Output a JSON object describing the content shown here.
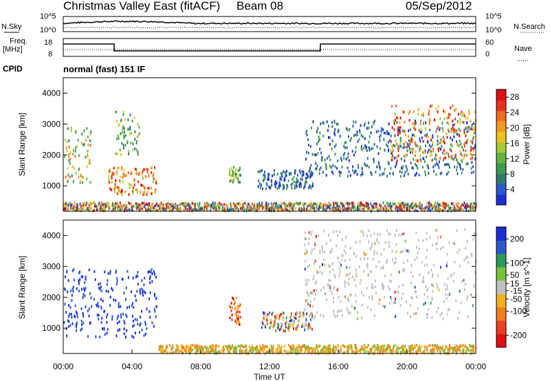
{
  "header": {
    "title": "Christmas Valley East (fitACF)",
    "beam": "Beam 08",
    "date": "05/Sep/2012"
  },
  "strips": {
    "nsky_label": "N.Sky",
    "nsearch_label": "N.Search",
    "nsky_ticks": [
      "10^5",
      "10^0"
    ],
    "nsearch_ticks": [
      "10^5",
      "10^0"
    ],
    "freq_label": "Freq.",
    "freq_unit": "[MHz]",
    "freq_ticks": [
      "18",
      "8"
    ],
    "nave_label": "Nave",
    "nave_ticks": [
      "60",
      "0"
    ],
    "cpid_label": "CPID",
    "cpid_text": "normal (fast) 151 IF"
  },
  "colors": {
    "power_scale": [
      "#1a2fd6",
      "#2a58c8",
      "#2f7a6e",
      "#3d9a52",
      "#62b33e",
      "#a6c936",
      "#f0c020",
      "#f09a20",
      "#f06a1e",
      "#e83020",
      "#e01010"
    ],
    "velocity_scale": [
      "#1a2fd6",
      "#2a58c8",
      "#2a9a5a",
      "#7ac040",
      "#c0c0c0",
      "#f0b020",
      "#f08020",
      "#e84020",
      "#e01010"
    ],
    "ground_scatter": "#bdbdbd"
  },
  "chart_data": [
    {
      "type": "heatmap",
      "name": "power",
      "ylabel": "Slant Range [km]",
      "xlabel": "Time UT",
      "x_ticks": [
        "00:00",
        "04:00",
        "08:00",
        "12:00",
        "16:00",
        "20:00",
        "00:00"
      ],
      "x_range_hours": [
        0,
        24
      ],
      "ylim": [
        180,
        4500
      ],
      "y_ticks": [
        1000,
        2000,
        3000,
        4000
      ],
      "colorbar": {
        "label": "Power [dB]",
        "ticks": [
          4,
          8,
          12,
          16,
          20,
          24,
          28
        ],
        "range": [
          0,
          30
        ]
      },
      "features": [
        {
          "t": [
            0.0,
            1.6
          ],
          "range": [
            1100,
            2900
          ],
          "level": "mid-high"
        },
        {
          "t": [
            2.6,
            5.4
          ],
          "range": [
            700,
            1600
          ],
          "level": "high"
        },
        {
          "t": [
            3.0,
            4.4
          ],
          "range": [
            2000,
            3400
          ],
          "level": "mid"
        },
        {
          "t": [
            9.6,
            10.3
          ],
          "range": [
            1100,
            1600
          ],
          "level": "mid"
        },
        {
          "t": [
            11.3,
            14.5
          ],
          "range": [
            900,
            1500
          ],
          "level": "low"
        },
        {
          "t": [
            14.0,
            24.0
          ],
          "range": [
            1300,
            3100
          ],
          "level": "low"
        },
        {
          "t": [
            19.0,
            24.0
          ],
          "range": [
            1800,
            3600
          ],
          "level": "high"
        },
        {
          "t": [
            0.0,
            24.0
          ],
          "range": [
            180,
            450
          ],
          "level": "mixed"
        }
      ]
    },
    {
      "type": "heatmap",
      "name": "velocity",
      "ylabel": "Slant Range [km]",
      "xlabel": "Time UT",
      "x_ticks": [
        "00:00",
        "04:00",
        "08:00",
        "12:00",
        "16:00",
        "20:00",
        "00:00"
      ],
      "x_range_hours": [
        0,
        24
      ],
      "ylim": [
        180,
        4500
      ],
      "y_ticks": [
        1000,
        2000,
        3000,
        4000
      ],
      "colorbar": {
        "label": "Velocity [m s^-1]",
        "ticks": [
          200,
          100,
          50,
          15,
          -15,
          -50,
          -100,
          -200
        ],
        "range": [
          -250,
          250
        ]
      },
      "features": [
        {
          "t": [
            0.0,
            5.4
          ],
          "range": [
            700,
            2900
          ],
          "level": "positive"
        },
        {
          "t": [
            9.6,
            10.3
          ],
          "range": [
            1100,
            2000
          ],
          "level": "negative"
        },
        {
          "t": [
            11.5,
            14.5
          ],
          "range": [
            900,
            1500
          ],
          "level": "mixed"
        },
        {
          "t": [
            14.0,
            24.0
          ],
          "range": [
            1300,
            4200
          ],
          "level": "ground"
        },
        {
          "t": [
            5.5,
            24.0
          ],
          "range": [
            180,
            450
          ],
          "level": "negative-low"
        }
      ]
    }
  ]
}
